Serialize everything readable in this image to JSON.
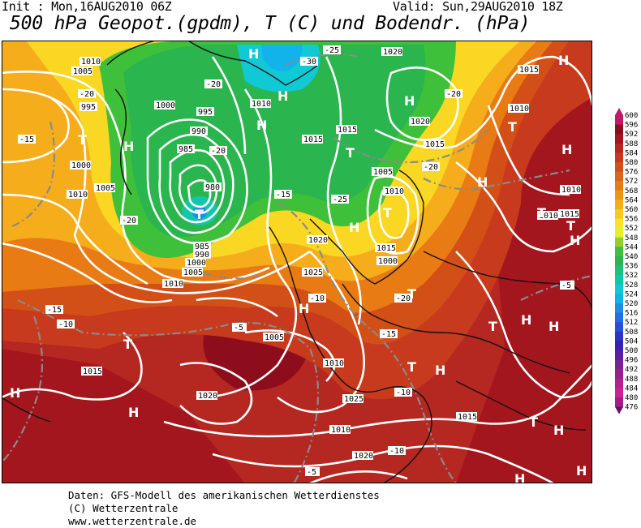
{
  "header": {
    "init": "Init : Mon,16AUG2010 06Z",
    "valid": "Valid: Sun,29AUG2010 18Z",
    "title": "500 hPa Geopot.(gpdm), T (C) und Bodendr. (hPa)"
  },
  "footer": {
    "line1": "Daten: GFS-Modell des amerikanischen Wetterdienstes",
    "line2": "(C) Wetterzentrale",
    "line3": "www.wetterzentrale.de"
  },
  "legend": {
    "levels": [
      "600",
      "596",
      "592",
      "588",
      "584",
      "580",
      "576",
      "572",
      "568",
      "564",
      "560",
      "556",
      "552",
      "548",
      "544",
      "540",
      "536",
      "532",
      "528",
      "524",
      "520",
      "516",
      "512",
      "508",
      "504",
      "500",
      "496",
      "492",
      "488",
      "484",
      "480",
      "476"
    ],
    "colors": [
      "#c2186a",
      "#8e0d1c",
      "#a3161d",
      "#b52721",
      "#c73a1d",
      "#d24f17",
      "#de6518",
      "#e87b14",
      "#f09318",
      "#f6ad1c",
      "#f9c91e",
      "#fbe22a",
      "#e7ef2d",
      "#8fd02b",
      "#3fc03a",
      "#2ab54f",
      "#1ec07a",
      "#10c7a9",
      "#10c9d4",
      "#12b3ea",
      "#1a8fea",
      "#2070e5",
      "#2850d8",
      "#2c34c8",
      "#3820b6",
      "#5a1ea8",
      "#7c2098",
      "#9a1e8e",
      "#b6208a",
      "#c82295",
      "#a8198a",
      "#6a0c68"
    ],
    "colors_note_unused": ""
  },
  "map_labels": {
    "pressure": [
      "1010",
      "1005",
      "995",
      "1000",
      "1010",
      "1005",
      "1000",
      "985",
      "990",
      "995",
      "980",
      "985",
      "990",
      "1000",
      "1005",
      "1010",
      "1010",
      "1015",
      "1020",
      "1015",
      "1025",
      "1020",
      "1015",
      "1020",
      "1015",
      "1010",
      "1005",
      "1010",
      "1015",
      "1000",
      "1005",
      "1010",
      "1015",
      "1020",
      "1025",
      "1010",
      "1015",
      "1020",
      "1015",
      "1010",
      "1010"
    ],
    "temperature": [
      "-25",
      "-30",
      "-20",
      "-20",
      "-20",
      "-15",
      "-25",
      "-20",
      "-15",
      "-10",
      "-15",
      "-20",
      "-10",
      "-5",
      "-15",
      "-10",
      "-5",
      "-5",
      "-20",
      "-20",
      "-10"
    ],
    "highs_lows": [
      "H",
      "T",
      "H",
      "T",
      "H",
      "H",
      "T",
      "H",
      "H",
      "T",
      "T",
      "H",
      "H",
      "T",
      "T",
      "H",
      "H",
      "H",
      "T",
      "H",
      "T",
      "H",
      "H",
      "T",
      "T",
      "H",
      "H",
      "H",
      "H",
      "T",
      "H"
    ]
  }
}
